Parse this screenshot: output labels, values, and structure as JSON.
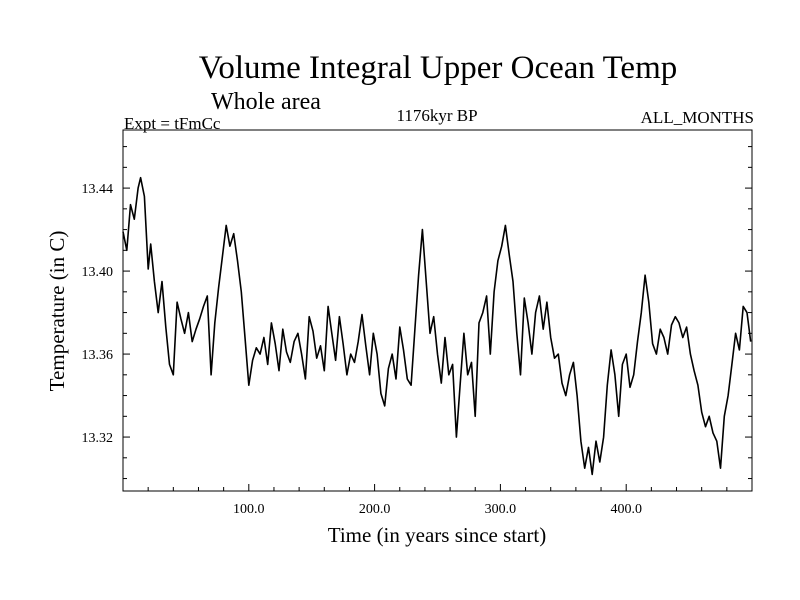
{
  "chart_data": {
    "type": "line",
    "title": "Volume Integral Upper Ocean Temp",
    "subtitle": "Whole area",
    "experiment_label": "Expt = tFmCc",
    "period_label": "1176kyr BP",
    "months_label": "ALL_MONTHS",
    "xlabel": "Time (in years since start)",
    "ylabel": "Temperature (in C)",
    "xlim": [
      0,
      500
    ],
    "ylim": [
      13.294,
      13.468
    ],
    "x_ticks": [
      100,
      200,
      300,
      400
    ],
    "x_tick_labels": [
      "100.0",
      "200.0",
      "300.0",
      "400.0"
    ],
    "y_ticks": [
      13.32,
      13.36,
      13.4,
      13.44
    ],
    "y_tick_labels": [
      "13.32",
      "13.36",
      "13.40",
      "13.44"
    ],
    "grid": false,
    "series": [
      {
        "name": "Volume Integral Upper Ocean Temp",
        "color": "#000000",
        "x": [
          0,
          3,
          6,
          9,
          12,
          14,
          17,
          20,
          22,
          25,
          28,
          31,
          34,
          37,
          40,
          43,
          46,
          49,
          52,
          55,
          58,
          61,
          64,
          67,
          70,
          73,
          76,
          79,
          82,
          85,
          88,
          91,
          94,
          97,
          100,
          103,
          106,
          109,
          112,
          115,
          118,
          121,
          124,
          127,
          130,
          133,
          136,
          139,
          142,
          145,
          148,
          151,
          154,
          157,
          160,
          163,
          166,
          169,
          172,
          175,
          178,
          181,
          184,
          187,
          190,
          193,
          196,
          199,
          202,
          205,
          208,
          211,
          214,
          217,
          220,
          223,
          226,
          229,
          232,
          235,
          238,
          241,
          244,
          247,
          250,
          253,
          256,
          259,
          262,
          265,
          268,
          271,
          274,
          277,
          280,
          283,
          286,
          289,
          292,
          295,
          298,
          301,
          304,
          307,
          310,
          313,
          316,
          319,
          322,
          325,
          328,
          331,
          334,
          337,
          340,
          343,
          346,
          349,
          352,
          355,
          358,
          361,
          364,
          367,
          370,
          373,
          376,
          379,
          382,
          385,
          388,
          391,
          394,
          397,
          400,
          403,
          406,
          409,
          412,
          415,
          418,
          421,
          424,
          427,
          430,
          433,
          436,
          439,
          442,
          445,
          448,
          451,
          454,
          457,
          460,
          463,
          466,
          469,
          472,
          475,
          478,
          481,
          484,
          487,
          490,
          493,
          496,
          499
        ],
        "values": [
          13.419,
          13.41,
          13.432,
          13.425,
          13.44,
          13.445,
          13.436,
          13.401,
          13.413,
          13.395,
          13.38,
          13.395,
          13.373,
          13.355,
          13.35,
          13.385,
          13.377,
          13.37,
          13.38,
          13.366,
          13.372,
          13.377,
          13.383,
          13.388,
          13.35,
          13.375,
          13.392,
          13.407,
          13.422,
          13.412,
          13.418,
          13.405,
          13.39,
          13.368,
          13.345,
          13.357,
          13.363,
          13.36,
          13.368,
          13.355,
          13.375,
          13.365,
          13.352,
          13.372,
          13.361,
          13.356,
          13.366,
          13.37,
          13.36,
          13.348,
          13.378,
          13.371,
          13.358,
          13.364,
          13.352,
          13.383,
          13.37,
          13.357,
          13.378,
          13.365,
          13.35,
          13.36,
          13.356,
          13.366,
          13.379,
          13.364,
          13.35,
          13.37,
          13.36,
          13.341,
          13.335,
          13.353,
          13.36,
          13.348,
          13.373,
          13.362,
          13.348,
          13.345,
          13.372,
          13.398,
          13.42,
          13.395,
          13.37,
          13.378,
          13.36,
          13.346,
          13.368,
          13.35,
          13.355,
          13.32,
          13.345,
          13.37,
          13.35,
          13.356,
          13.33,
          13.375,
          13.38,
          13.388,
          13.36,
          13.39,
          13.405,
          13.412,
          13.422,
          13.408,
          13.395,
          13.37,
          13.35,
          13.387,
          13.375,
          13.36,
          13.38,
          13.388,
          13.372,
          13.385,
          13.368,
          13.358,
          13.36,
          13.346,
          13.34,
          13.35,
          13.356,
          13.34,
          13.318,
          13.305,
          13.315,
          13.302,
          13.318,
          13.308,
          13.32,
          13.345,
          13.362,
          13.35,
          13.33,
          13.355,
          13.36,
          13.344,
          13.35,
          13.366,
          13.38,
          13.398,
          13.385,
          13.365,
          13.36,
          13.372,
          13.368,
          13.36,
          13.374,
          13.378,
          13.375,
          13.368,
          13.373,
          13.36,
          13.352,
          13.345,
          13.332,
          13.325,
          13.33,
          13.322,
          13.318,
          13.305,
          13.33,
          13.34,
          13.355,
          13.37,
          13.362,
          13.383,
          13.38,
          13.366
        ]
      }
    ]
  }
}
